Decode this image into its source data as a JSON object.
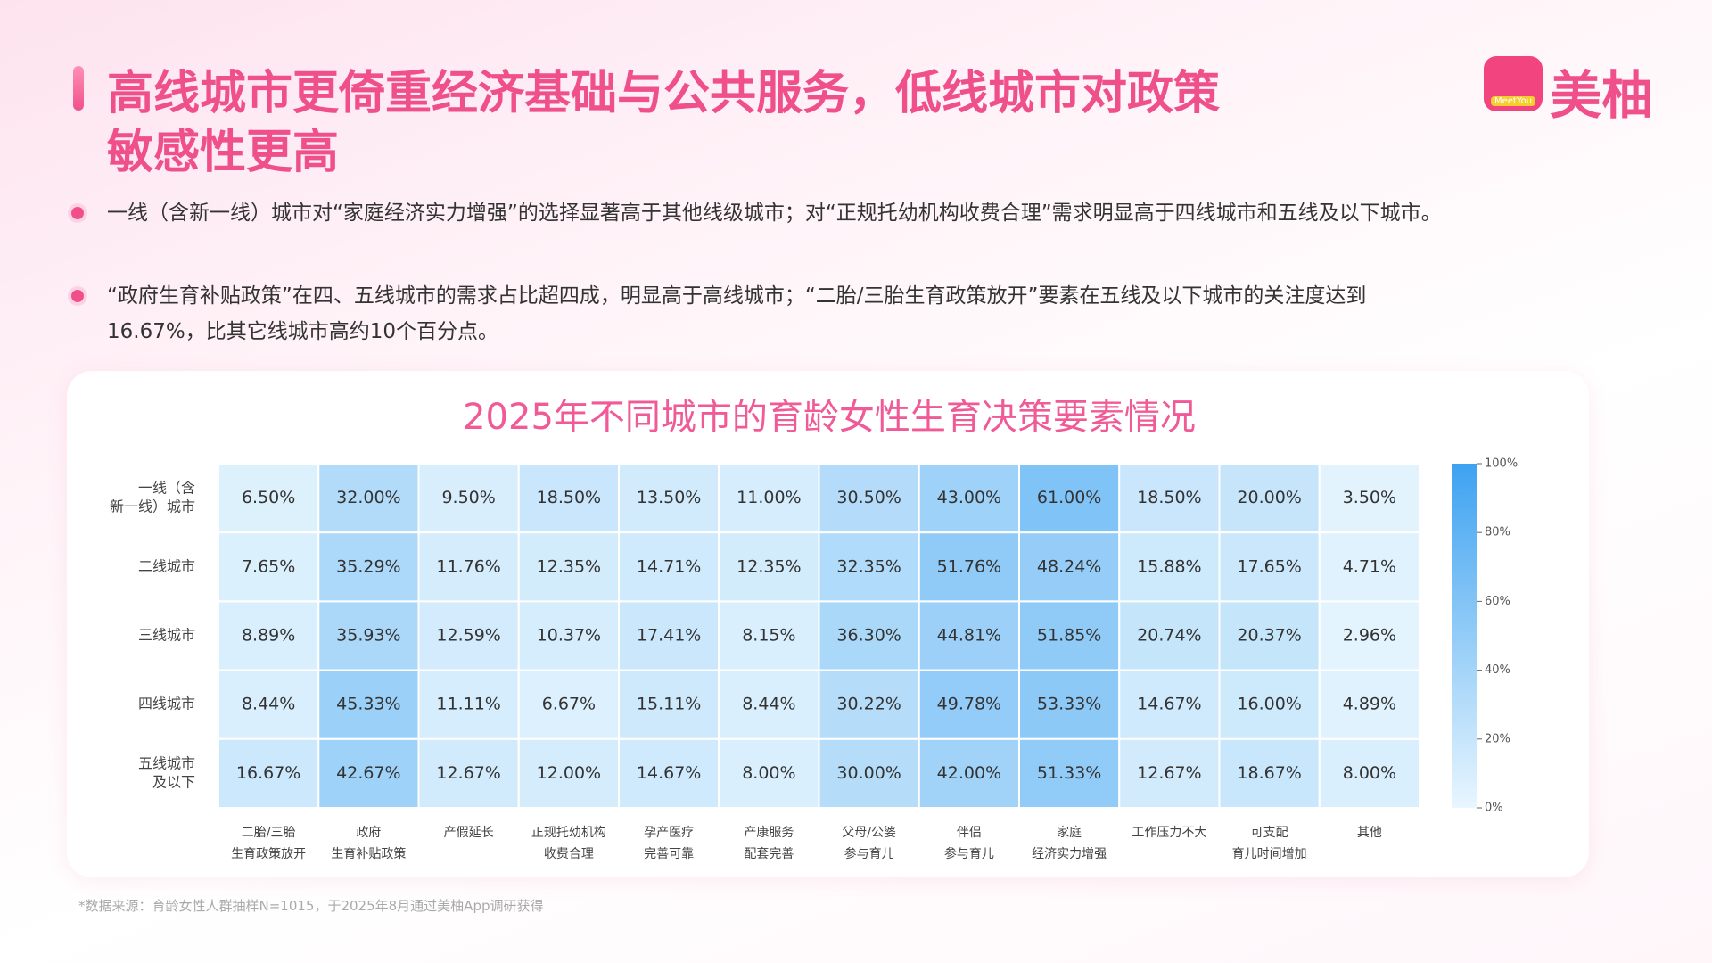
{
  "title": [
    "高线城市更倚重经济基础与公共服务，低线城市对政策",
    "敏感性更高"
  ],
  "logo": {
    "badge": "MeetYou",
    "name": "美柚"
  },
  "bullets": [
    "一线（含新一线）城市对“家庭经济实力增强”的选择显著高于其他线级城市；对“正规托幼机构收费合理”需求明显高于四线城市和五线及以下城市。",
    "“政府生育补贴政策”在四、五线城市的需求占比超四成，明显高于高线城市；“二胎/三胎生育政策放开”要素在五线及以下城市的关注度达到16.67%，比其它线城市高约10个百分点。"
  ],
  "source": "*数据来源：育龄女性人群抽样N=1015，于2025年8月通过美柚App调研获得",
  "chart_data": {
    "type": "heatmap",
    "title": "2025年不同城市的育龄女性生育决策要素情况",
    "rows": [
      [
        "一线（含",
        "新一线）城市"
      ],
      [
        "二线城市"
      ],
      [
        "三线城市"
      ],
      [
        "四线城市"
      ],
      [
        "五线城市",
        "及以下"
      ]
    ],
    "categories": [
      [
        "二胎/三胎",
        "生育政策放开"
      ],
      [
        "政府",
        "生育补贴政策"
      ],
      [
        "产假延长"
      ],
      [
        "正规托幼机构",
        "收费合理"
      ],
      [
        "孕产医疗",
        "完善可靠"
      ],
      [
        "产康服务",
        "配套完善"
      ],
      [
        "父母/公婆",
        "参与育儿"
      ],
      [
        "伴侣",
        "参与育儿"
      ],
      [
        "家庭",
        "经济实力增强"
      ],
      [
        "工作压力不大"
      ],
      [
        "可支配",
        "育儿时间增加"
      ],
      [
        "其他"
      ]
    ],
    "values": [
      [
        6.5,
        32,
        9.5,
        18.5,
        13.5,
        11,
        30.5,
        43,
        61,
        18.5,
        20,
        3.5
      ],
      [
        7.65,
        35.29,
        11.76,
        12.35,
        14.71,
        12.35,
        32.35,
        51.76,
        48.24,
        15.88,
        17.65,
        4.71
      ],
      [
        8.89,
        35.93,
        12.59,
        10.37,
        17.41,
        8.15,
        36.3,
        44.81,
        51.85,
        20.74,
        20.37,
        2.96
      ],
      [
        8.44,
        45.33,
        11.11,
        6.67,
        15.11,
        8.44,
        30.22,
        49.78,
        53.33,
        14.67,
        16,
        4.89
      ],
      [
        16.67,
        42.67,
        12.67,
        12,
        14.67,
        8,
        30,
        42,
        51.33,
        12.67,
        18.67,
        8
      ]
    ],
    "value_labels": [
      [
        "6.50%",
        "32.00%",
        "9.50%",
        "18.50%",
        "13.50%",
        "11.00%",
        "30.50%",
        "43.00%",
        "61.00%",
        "18.50%",
        "20.00%",
        "3.50%"
      ],
      [
        "7.65%",
        "35.29%",
        "11.76%",
        "12.35%",
        "14.71%",
        "12.35%",
        "32.35%",
        "51.76%",
        "48.24%",
        "15.88%",
        "17.65%",
        "4.71%"
      ],
      [
        "8.89%",
        "35.93%",
        "12.59%",
        "10.37%",
        "17.41%",
        "8.15%",
        "36.30%",
        "44.81%",
        "51.85%",
        "20.74%",
        "20.37%",
        "2.96%"
      ],
      [
        "8.44%",
        "45.33%",
        "11.11%",
        "6.67%",
        "15.11%",
        "8.44%",
        "30.22%",
        "49.78%",
        "53.33%",
        "14.67%",
        "16.00%",
        "4.89%"
      ],
      [
        "16.67%",
        "42.67%",
        "12.67%",
        "12.00%",
        "14.67%",
        "8.00%",
        "30.00%",
        "42.00%",
        "51.33%",
        "12.67%",
        "18.67%",
        "8.00%"
      ]
    ],
    "colorscale": [
      "#e8f6fe",
      "#3ea2f1"
    ],
    "clim": [
      0,
      100
    ],
    "cticks": [
      {
        "value": 0,
        "label": "0%"
      },
      {
        "value": 20,
        "label": "20%"
      },
      {
        "value": 40,
        "label": "40%"
      },
      {
        "value": 60,
        "label": "60%"
      },
      {
        "value": 80,
        "label": "80%"
      },
      {
        "value": 100,
        "label": "100%"
      }
    ]
  }
}
